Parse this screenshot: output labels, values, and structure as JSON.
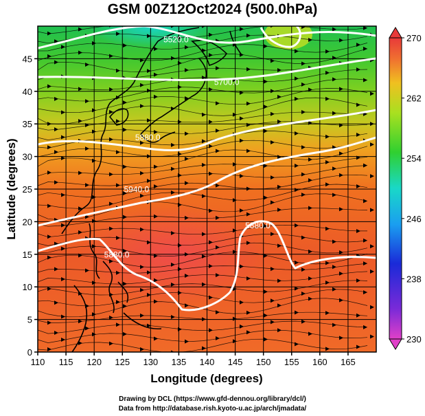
{
  "title": "GSM 00Z12Oct2024 (500.0hPa)",
  "xaxis": {
    "label": "Longitude (degrees)",
    "min": 110,
    "max": 170,
    "ticks": [
      110,
      115,
      120,
      125,
      130,
      135,
      140,
      145,
      150,
      155,
      160,
      165
    ]
  },
  "yaxis": {
    "label": "Latitude  (degrees)",
    "min": 0,
    "max": 50,
    "ticks": [
      0,
      5,
      10,
      15,
      20,
      25,
      30,
      35,
      40,
      45
    ]
  },
  "colorbar": {
    "min": 230,
    "max": 270,
    "ticks": [
      230,
      238,
      246,
      254,
      262,
      270
    ]
  },
  "contours": {
    "labels": [
      {
        "text": "5520.0",
        "lon": 134.5,
        "lat": 47.5
      },
      {
        "text": "5700.0",
        "lon": 143.5,
        "lat": 41.0
      },
      {
        "text": "5880.0",
        "lon": 129.5,
        "lat": 32.5
      },
      {
        "text": "5940.0",
        "lon": 127.5,
        "lat": 24.5
      },
      {
        "text": "5880.0",
        "lon": 149.0,
        "lat": 19.0
      },
      {
        "text": "5880.0",
        "lon": 124.0,
        "lat": 14.5
      }
    ]
  },
  "credits": {
    "line1": "Drawing by DCL (https://www.gfd-dennou.org/library/dcl/)",
    "line2": "Data from http://database.rish.kyoto-u.ac.jp/arch/jmadata/"
  },
  "colors": {
    "axes": "#000000",
    "contour": "#ffffff",
    "coast": "#000000"
  }
}
